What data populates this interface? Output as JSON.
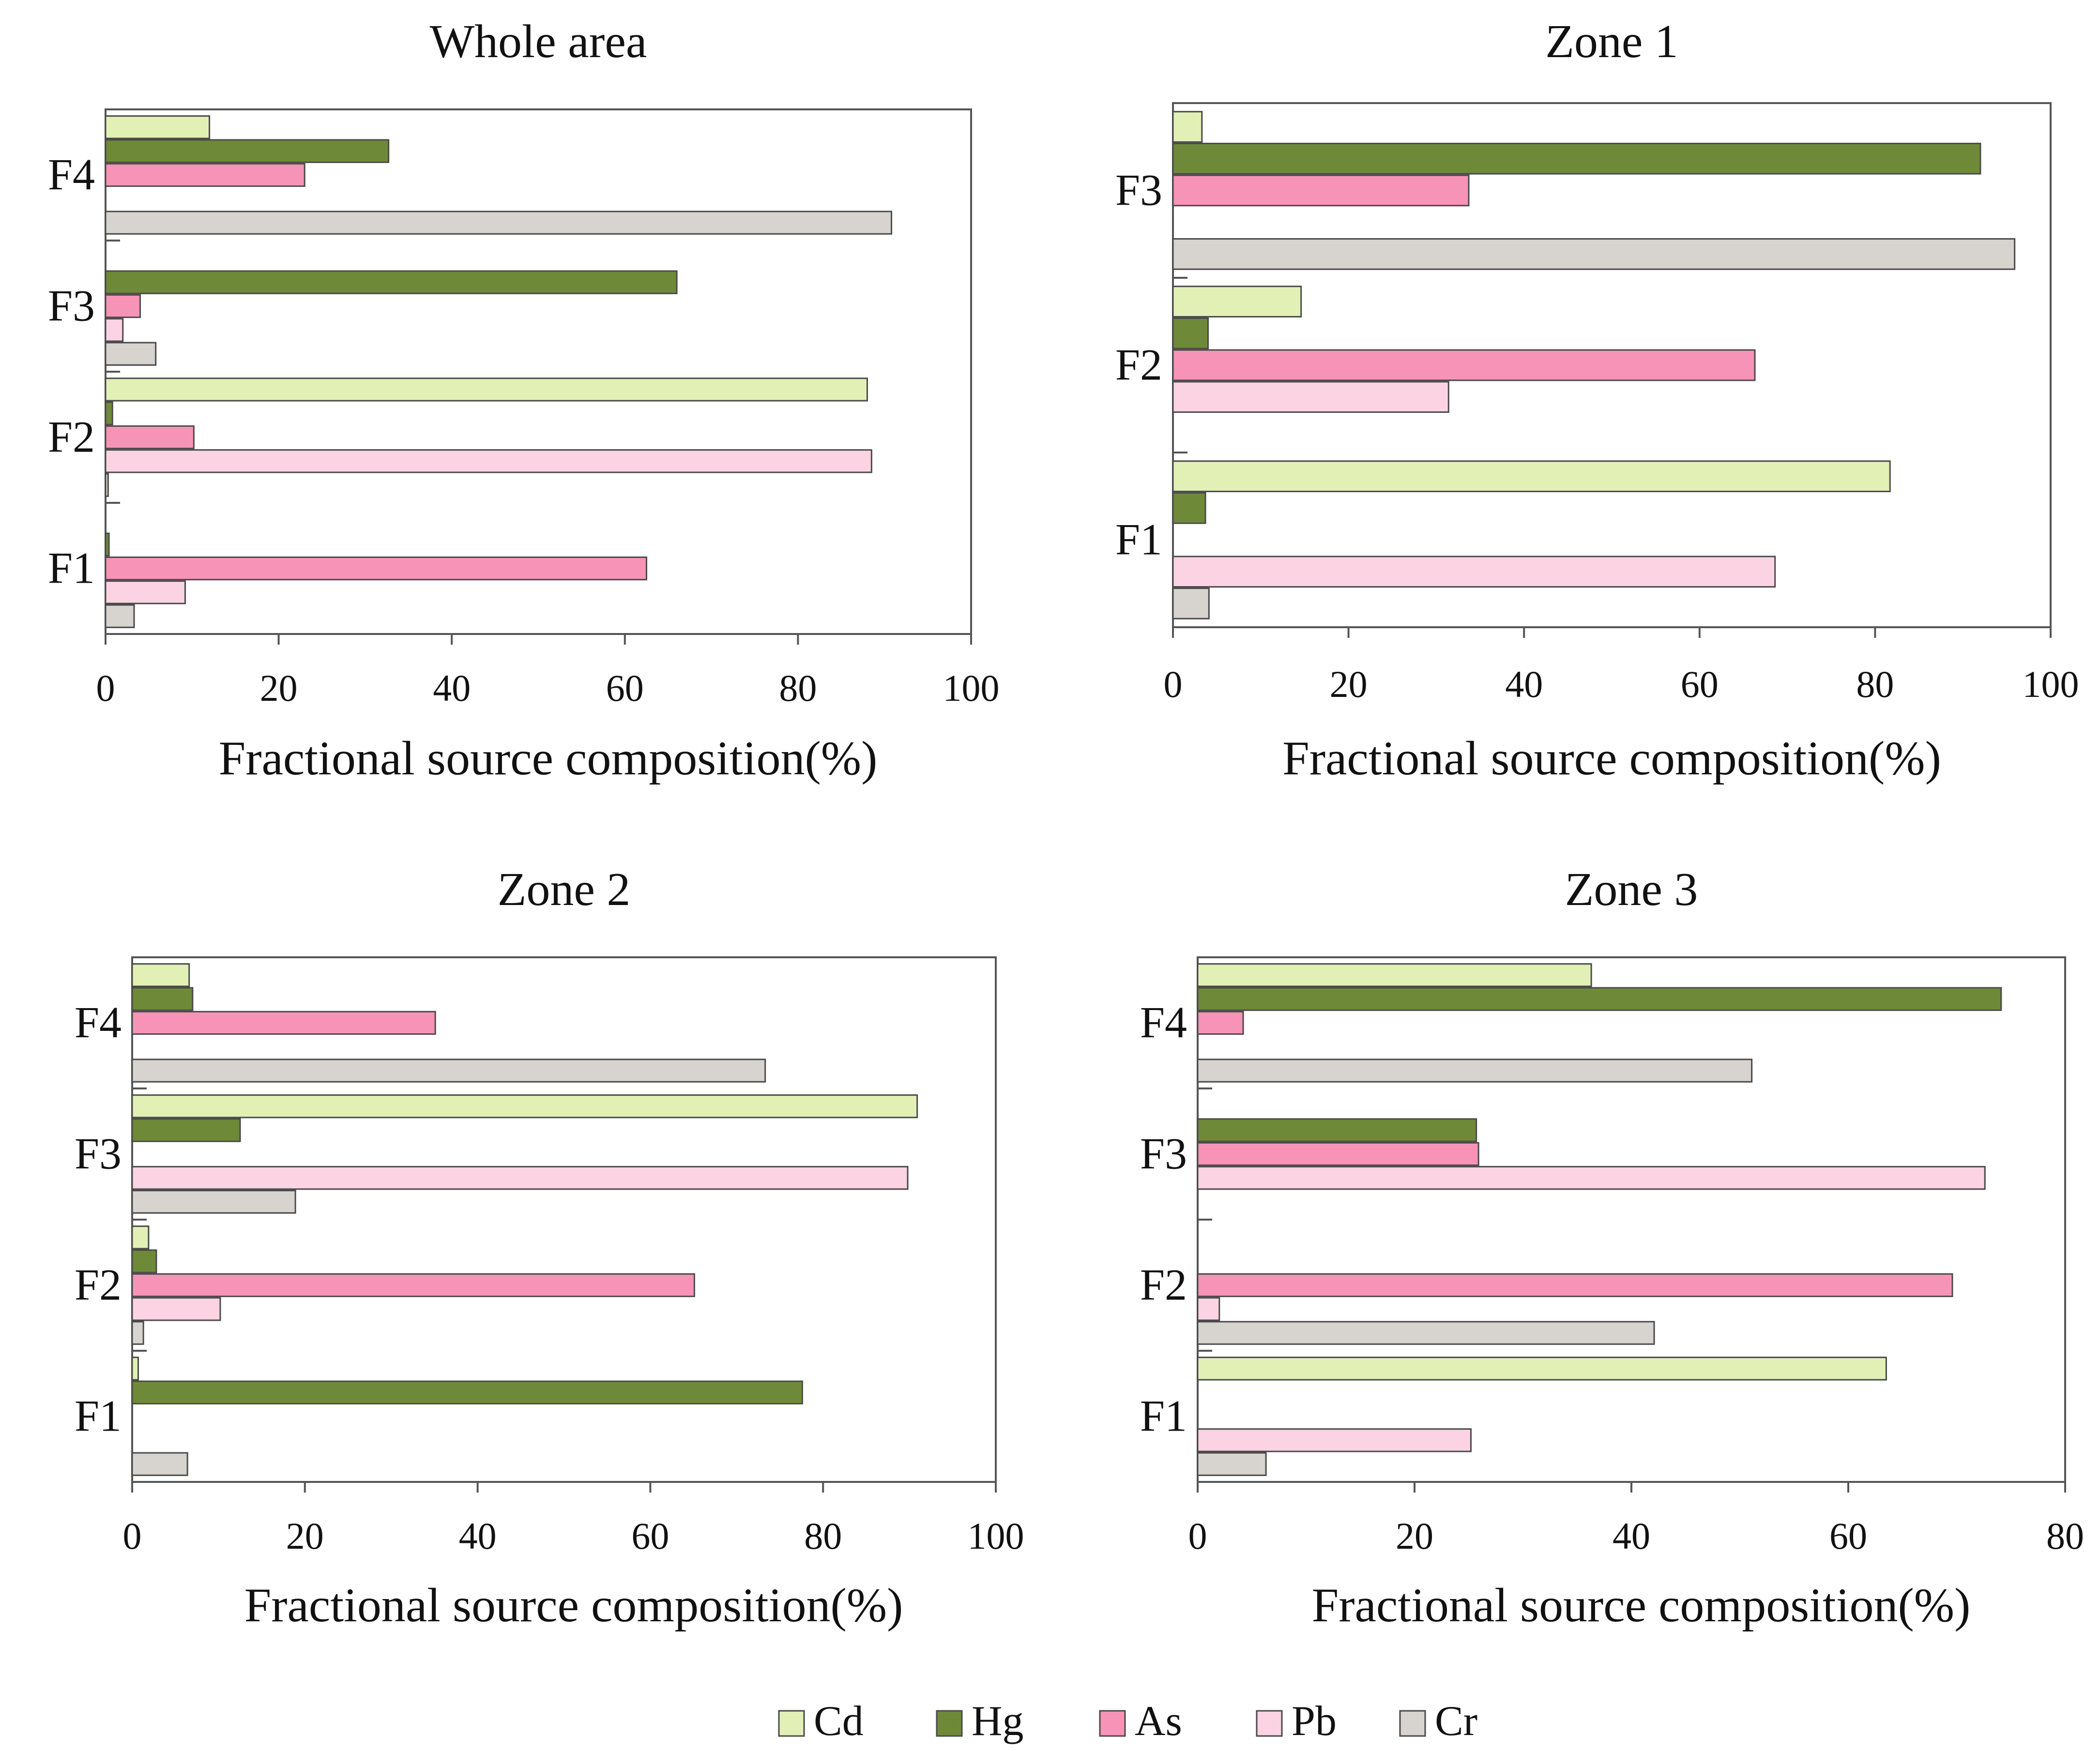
{
  "chart_data": [
    {
      "type": "bar",
      "orientation": "horizontal",
      "title": "Whole area",
      "xlabel": "Fractional  source composition(%)",
      "ylabel": "",
      "xlim": [
        0,
        100
      ],
      "xticks": [
        0,
        20,
        40,
        60,
        80,
        100
      ],
      "categories": [
        "F4",
        "F3",
        "F2",
        "F1"
      ],
      "series": [
        {
          "name": "Cd",
          "values": [
            12,
            0,
            88,
            0
          ]
        },
        {
          "name": "Hg",
          "values": [
            32.7,
            66,
            0.8,
            0.4
          ]
        },
        {
          "name": "As",
          "values": [
            23,
            4,
            10.2,
            62.5
          ]
        },
        {
          "name": "Pb",
          "values": [
            0,
            2,
            88.5,
            9.2
          ]
        },
        {
          "name": "Cr",
          "values": [
            90.8,
            5.8,
            0.3,
            3.3
          ]
        }
      ]
    },
    {
      "type": "bar",
      "orientation": "horizontal",
      "title": "Zone 1",
      "xlabel": "Fractional  source composition(%)",
      "ylabel": "",
      "xlim": [
        0,
        100
      ],
      "xticks": [
        0,
        20,
        40,
        60,
        80,
        100
      ],
      "categories": [
        "F3",
        "F2",
        "F1"
      ],
      "series": [
        {
          "name": "Cd",
          "values": [
            3.3,
            14.6,
            81.7
          ]
        },
        {
          "name": "Hg",
          "values": [
            92,
            4,
            3.7
          ]
        },
        {
          "name": "As",
          "values": [
            33.7,
            66.3,
            0
          ]
        },
        {
          "name": "Pb",
          "values": [
            0,
            31.4,
            68.6
          ]
        },
        {
          "name": "Cr",
          "values": [
            95.9,
            0,
            4.1
          ]
        }
      ]
    },
    {
      "type": "bar",
      "orientation": "horizontal",
      "title": "Zone 2",
      "xlabel": "Fractional  source composition(%)",
      "ylabel": "",
      "xlim": [
        0,
        100
      ],
      "xticks": [
        0,
        20,
        40,
        60,
        80,
        100
      ],
      "categories": [
        "F4",
        "F3",
        "F2",
        "F1"
      ],
      "series": [
        {
          "name": "Cd",
          "values": [
            6.6,
            90.9,
            1.9,
            0.7
          ]
        },
        {
          "name": "Hg",
          "values": [
            7,
            12.5,
            2.8,
            77.6
          ]
        },
        {
          "name": "As",
          "values": [
            35.1,
            0,
            65.1,
            0
          ]
        },
        {
          "name": "Pb",
          "values": [
            0,
            89.8,
            10.2,
            0
          ]
        },
        {
          "name": "Cr",
          "values": [
            73.3,
            18.9,
            1.3,
            6.4
          ]
        }
      ]
    },
    {
      "type": "bar",
      "orientation": "horizontal",
      "title": "Zone 3",
      "xlabel": "Fractional  source composition(%)",
      "ylabel": "",
      "xlim": [
        0,
        80
      ],
      "xticks": [
        0,
        20,
        40,
        60,
        80
      ],
      "categories": [
        "F4",
        "F3",
        "F2",
        "F1"
      ],
      "series": [
        {
          "name": "Cd",
          "values": [
            36.3,
            0,
            0,
            63.5
          ]
        },
        {
          "name": "Hg",
          "values": [
            74.1,
            25.7,
            0,
            0
          ]
        },
        {
          "name": "As",
          "values": [
            4.2,
            25.9,
            69.6,
            0
          ]
        },
        {
          "name": "Pb",
          "values": [
            0,
            72.6,
            2,
            25.2
          ]
        },
        {
          "name": "Cr",
          "values": [
            51.1,
            0,
            42.1,
            6.3
          ]
        }
      ]
    }
  ],
  "legend": {
    "items": [
      {
        "label": "Cd",
        "color": "#e2f0b6"
      },
      {
        "label": "Hg",
        "color": "#6e8a38"
      },
      {
        "label": "As",
        "color": "#f893b8"
      },
      {
        "label": "Pb",
        "color": "#fcd3e3"
      },
      {
        "label": "Cr",
        "color": "#d7d3cf"
      }
    ]
  }
}
